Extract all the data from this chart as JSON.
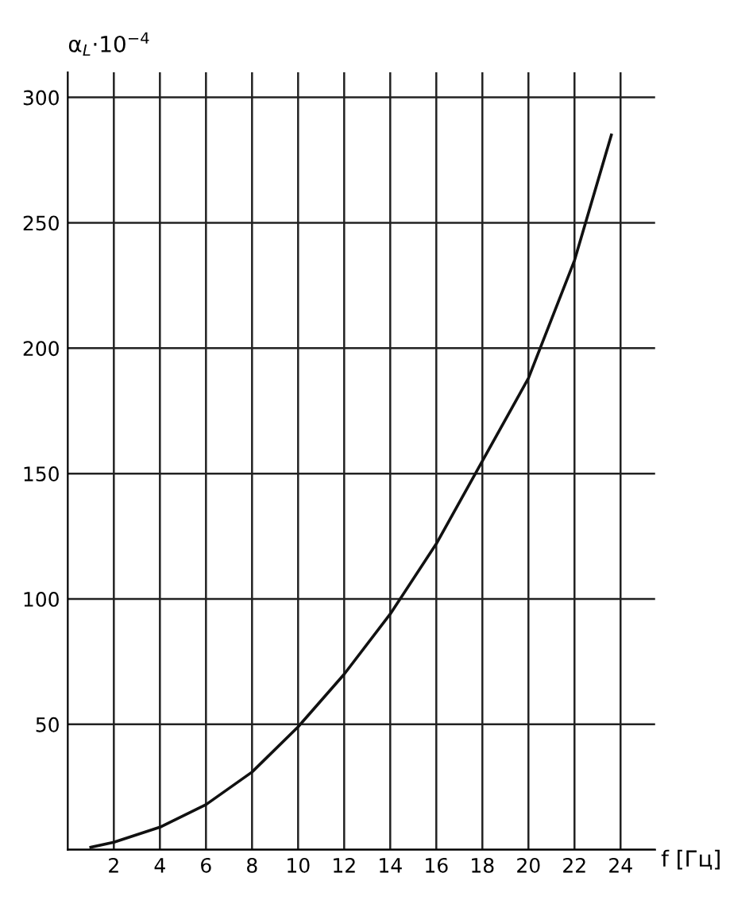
{
  "chart_data": {
    "type": "line",
    "xlabel": "f [Гц]",
    "ylabel": "α$_{L}$·10$^{−4}$",
    "x": [
      1,
      2,
      4,
      6,
      8,
      10,
      12,
      14,
      16,
      18,
      20,
      22,
      23.6
    ],
    "series": [
      {
        "color": "#111111",
        "values": [
          1,
          3,
          9,
          18,
          31,
          49,
          70,
          94,
          122,
          155,
          188,
          235,
          285
        ]
      }
    ],
    "xlim": [
      0,
      25.5
    ],
    "ylim": [
      0,
      310
    ],
    "xticks": [
      2,
      4,
      6,
      8,
      10,
      12,
      14,
      16,
      18,
      20,
      22,
      24
    ],
    "yticks": [
      {
        "value": 0,
        "label": null
      },
      50,
      100,
      150,
      200,
      250,
      300
    ],
    "grid": true,
    "marker": "none",
    "line_style": "solid"
  }
}
